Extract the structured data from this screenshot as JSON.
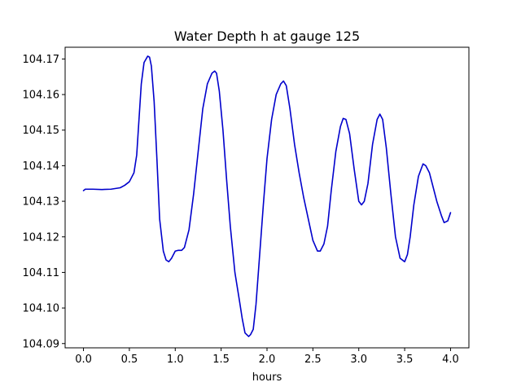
{
  "chart_data": {
    "type": "line",
    "title": "Water Depth h at gauge 125",
    "xlabel": "hours",
    "ylabel": "",
    "xlim": [
      -0.2,
      4.2
    ],
    "ylim": [
      104.0888,
      104.1733
    ],
    "xticks": [
      0.0,
      0.5,
      1.0,
      1.5,
      2.0,
      2.5,
      3.0,
      3.5,
      4.0
    ],
    "xtick_labels": [
      "0.0",
      "0.5",
      "1.0",
      "1.5",
      "2.0",
      "2.5",
      "3.0",
      "3.5",
      "4.0"
    ],
    "yticks": [
      104.09,
      104.1,
      104.11,
      104.12,
      104.13,
      104.14,
      104.15,
      104.16,
      104.17
    ],
    "ytick_labels": [
      "104.09",
      "104.10",
      "104.11",
      "104.12",
      "104.13",
      "104.14",
      "104.15",
      "104.16",
      "104.17"
    ],
    "grid": false,
    "colors": {
      "series": "#0000cc"
    },
    "series": [
      {
        "x": [
          0.0,
          0.02,
          0.1,
          0.2,
          0.3,
          0.4,
          0.45,
          0.5,
          0.55,
          0.58,
          0.6,
          0.63,
          0.66,
          0.7,
          0.72,
          0.74,
          0.77,
          0.8,
          0.83,
          0.87,
          0.9,
          0.93,
          0.96,
          1.0,
          1.03,
          1.07,
          1.1,
          1.15,
          1.2,
          1.25,
          1.3,
          1.35,
          1.4,
          1.43,
          1.45,
          1.48,
          1.52,
          1.56,
          1.6,
          1.65,
          1.7,
          1.73,
          1.76,
          1.8,
          1.82,
          1.85,
          1.88,
          1.92,
          1.96,
          2.0,
          2.05,
          2.1,
          2.15,
          2.18,
          2.21,
          2.25,
          2.3,
          2.35,
          2.4,
          2.45,
          2.5,
          2.55,
          2.58,
          2.62,
          2.66,
          2.7,
          2.75,
          2.8,
          2.83,
          2.86,
          2.9,
          2.95,
          3.0,
          3.03,
          3.06,
          3.1,
          3.15,
          3.2,
          3.23,
          3.26,
          3.3,
          3.35,
          3.4,
          3.45,
          3.5,
          3.53,
          3.56,
          3.6,
          3.65,
          3.7,
          3.73,
          3.77,
          3.8,
          3.85,
          3.9,
          3.93,
          3.97,
          4.0
        ],
        "y": [
          104.133,
          104.1334,
          104.1334,
          104.1333,
          104.1334,
          104.1338,
          104.1345,
          104.1355,
          104.138,
          104.143,
          104.151,
          104.163,
          104.169,
          104.1708,
          104.1705,
          104.168,
          104.158,
          104.142,
          104.125,
          104.116,
          104.1135,
          104.113,
          104.114,
          104.116,
          104.1162,
          104.1162,
          104.117,
          104.122,
          104.132,
          104.144,
          104.156,
          104.163,
          104.166,
          104.1666,
          104.166,
          104.161,
          104.15,
          104.136,
          104.123,
          104.11,
          104.102,
          104.097,
          104.093,
          104.092,
          104.0925,
          104.094,
          104.101,
          104.115,
          104.129,
          104.142,
          104.153,
          104.16,
          104.163,
          104.1638,
          104.1625,
          104.156,
          104.146,
          104.138,
          104.131,
          104.125,
          104.119,
          104.116,
          104.116,
          104.118,
          104.123,
          104.133,
          104.144,
          104.151,
          104.1533,
          104.153,
          104.149,
          104.139,
          104.13,
          104.129,
          104.13,
          104.135,
          104.146,
          104.153,
          104.1545,
          104.153,
          104.145,
          104.132,
          104.12,
          104.114,
          104.113,
          104.115,
          104.12,
          104.129,
          104.137,
          104.1405,
          104.14,
          104.138,
          104.135,
          104.13,
          104.126,
          104.124,
          104.1245,
          104.1268
        ]
      }
    ]
  }
}
